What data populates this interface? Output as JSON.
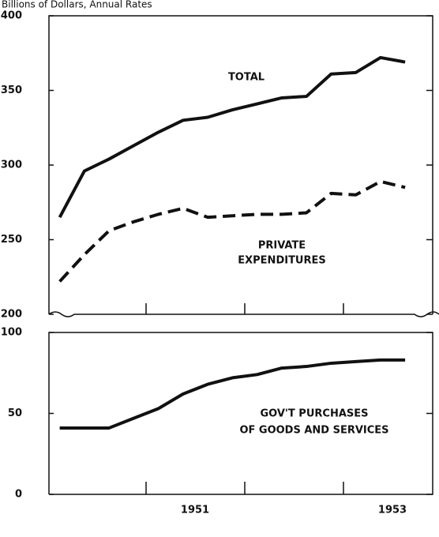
{
  "chart_data": [
    {
      "type": "line",
      "title": "Billions of Dollars, Annual Rates",
      "categories": [
        null,
        null,
        null,
        null,
        null,
        null,
        null,
        null,
        null,
        null,
        null,
        null,
        null,
        null,
        null
      ],
      "ylim": [
        200,
        400
      ],
      "yticks": [
        200,
        250,
        300,
        350,
        400
      ],
      "annotations": [
        "TOTAL",
        "PRIVATE",
        "EXPENDITURES"
      ],
      "series": [
        {
          "name": "TOTAL",
          "color": "#111111",
          "line_style": "solid",
          "values": [
            265,
            296,
            304,
            313,
            322,
            330,
            332,
            337,
            341,
            345,
            346,
            361,
            362,
            372,
            369
          ]
        },
        {
          "name": "PRIVATE EXPENDITURES",
          "color": "#111111",
          "line_style": "dashed",
          "values": [
            222,
            240,
            256,
            262,
            267,
            271,
            265,
            266,
            267,
            267,
            268,
            281,
            280,
            289,
            285
          ]
        }
      ]
    },
    {
      "type": "line",
      "categories": [
        null,
        null,
        null,
        null,
        null,
        null,
        null,
        null,
        null,
        null,
        null,
        null,
        null,
        null,
        null
      ],
      "ylim": [
        0,
        100
      ],
      "yticks": [
        0,
        50,
        100
      ],
      "annotations": [
        "GOV'T PURCHASES",
        "OF GOODS AND SERVICES"
      ],
      "x_labels": [
        "1951",
        "1953"
      ],
      "series": [
        {
          "name": "GOV'T PURCHASES OF GOODS AND SERVICES",
          "color": "#111111",
          "line_style": "solid",
          "values": [
            41,
            41,
            41,
            47,
            53,
            62,
            68,
            72,
            74,
            78,
            79,
            81,
            82,
            83,
            83
          ]
        }
      ]
    }
  ]
}
